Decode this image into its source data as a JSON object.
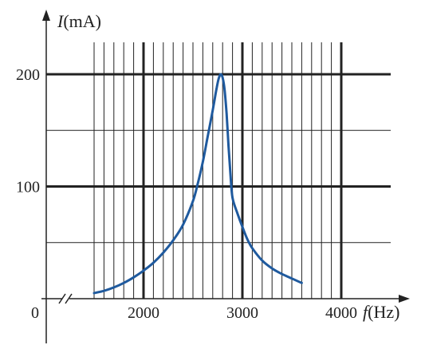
{
  "chart_data": {
    "type": "line",
    "title": "",
    "x_axis": {
      "var": "f",
      "unit": "(Hz)",
      "range": [
        1500,
        4500
      ],
      "ticks": [
        2000,
        3000,
        4000
      ],
      "tick_labels": [
        "2000",
        "3000",
        "4000"
      ],
      "minor_step": 100,
      "grid_extent": [
        1500,
        4500
      ],
      "minor_grid_extent": [
        1500,
        4000
      ],
      "broken": true
    },
    "y_axis": {
      "var": "I",
      "unit": "(mA)",
      "range": [
        0,
        200
      ],
      "ticks": [
        100,
        200
      ],
      "tick_labels": [
        "100",
        "200"
      ],
      "minor_ticks": [
        50,
        150
      ]
    },
    "origin_label": "0",
    "grid": true,
    "series": [
      {
        "color": "#1f5a9e",
        "x": [
          1500,
          1600,
          1700,
          1800,
          1900,
          2000,
          2100,
          2200,
          2300,
          2400,
          2500,
          2550,
          2600,
          2650,
          2700,
          2720,
          2740,
          2760,
          2780,
          2800,
          2820,
          2840,
          2860,
          2880,
          2900,
          2950,
          3000,
          3050,
          3100,
          3200,
          3300,
          3400,
          3500,
          3600
        ],
        "y": [
          5,
          7,
          10,
          14,
          19,
          25,
          32,
          41,
          52,
          66,
          87,
          103,
          122,
          145,
          168,
          178,
          188,
          196,
          200,
          197,
          186,
          165,
          136,
          110,
          90,
          76,
          64,
          53,
          45,
          34,
          27,
          22,
          18,
          14
        ]
      }
    ]
  }
}
